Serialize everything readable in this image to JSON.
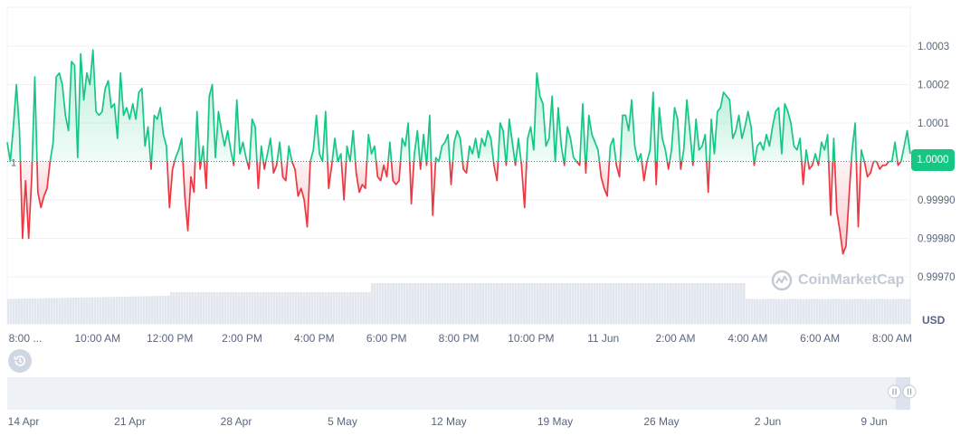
{
  "colors": {
    "up": "#16c784",
    "down": "#ea3943",
    "up_fill": "#16c784",
    "down_fill": "#ea3943",
    "grid": "#eff2f5",
    "volume": "#e2e6ee",
    "text": "#58667e",
    "badge": "#16c784"
  },
  "price_badge": "1.0000",
  "currency_label": "USD",
  "watermark": "CoinMarketCap",
  "history_icon": "history-icon",
  "chart_data": {
    "type": "line",
    "baseline": 1.0,
    "baseline_label": "1",
    "ylim": [
      0.99965,
      1.00035
    ],
    "y_ticks": [
      1.0003,
      1.0002,
      1.0001,
      0.9999,
      0.9998,
      0.9997
    ],
    "y_tick_labels": [
      "1.0003",
      "1.0002",
      "1.0001",
      "0.99990",
      "0.99980",
      "0.99970"
    ],
    "x_tick_labels": [
      "8:00 ...",
      "10:00 AM",
      "12:00 PM",
      "2:00 PM",
      "4:00 PM",
      "6:00 PM",
      "8:00 PM",
      "10:00 PM",
      "11 Jun",
      "2:00 AM",
      "4:00 AM",
      "6:00 AM",
      "8:00 AM"
    ],
    "grid": true,
    "series": [
      {
        "values": [
          1.00005,
          1.0,
          1.00009,
          1.0002,
          1.00008,
          0.9998,
          0.99995,
          0.9998,
          0.99996,
          1.00022,
          0.99992,
          0.99988,
          0.99991,
          0.99993,
          1.0,
          1.00005,
          1.00022,
          1.00023,
          1.0002,
          1.00012,
          1.00008,
          1.00026,
          1.00025,
          1.00001,
          1.00028,
          1.00016,
          1.00023,
          1.0002,
          1.00029,
          1.00013,
          1.00012,
          1.00013,
          1.00019,
          1.00021,
          1.00014,
          1.00015,
          1.00006,
          1.00023,
          1.00012,
          1.00014,
          1.00011,
          1.00015,
          1.00011,
          1.00018,
          1.00019,
          1.00004,
          1.00009,
          0.99998,
          1.00012,
          1.00011,
          1.00014,
          1.00007,
          1.00004,
          0.99988,
          0.99998,
          1.00001,
          1.00003,
          1.00006,
          0.99991,
          0.99982,
          0.99996,
          0.99992,
          1.00013,
          0.99998,
          1.00004,
          0.99993,
          1.00017,
          1.0002,
          1.00001,
          1.00013,
          1.00008,
          1.00004,
          1.00008,
          1.00003,
          0.99999,
          1.00016,
          1.00002,
          1.00005,
          1.00001,
          0.99998,
          1.00011,
          1.00009,
          0.99993,
          1.00004,
          0.99998,
          1.00002,
          1.00006,
          0.99997,
          0.99999,
          1.00005,
          0.99996,
          0.99995,
          1.00004,
          1.0,
          0.99998,
          0.99991,
          0.99993,
          0.9999,
          0.99983,
          1.0,
          1.00003,
          1.00012,
          1.00002,
          1.0,
          1.00013,
          0.99993,
          0.99999,
          1.00006,
          1.0,
          1.00002,
          0.9999,
          1.00004,
          1.0,
          1.00008,
          0.99997,
          0.99992,
          0.99994,
          0.99993,
          1.00007,
          1.00002,
          1.00004,
          0.99996,
          0.99995,
          0.99999,
          0.99996,
          1.00005,
          0.99995,
          0.99994,
          0.99995,
          1.00006,
          1.00004,
          1.0001,
          0.99989,
          1.00002,
          1.00008,
          0.99998,
          1.00007,
          0.99999,
          1.00012,
          0.99986,
          1.00001,
          1.0,
          1.00004,
          1.00005,
          1.00007,
          0.99994,
          1.00005,
          1.00008,
          1.00006,
          0.99998,
          0.99997,
          1.00004,
          1.00002,
          1.00006,
          1.00001,
          1.00006,
          1.00004,
          1.00008,
          1.00006,
          0.99999,
          0.99995,
          1.0001,
          1.00008,
          0.99999,
          1.00011,
          1.00005,
          0.99999,
          1.00006,
          0.99999,
          0.99988,
          1.00006,
          1.00009,
          1.00003,
          1.00023,
          1.00017,
          1.00015,
          1.00004,
          1.00006,
          1.00017,
          1.0,
          1.00014,
          1.00004,
          0.99999,
          1.00009,
          1.00006,
          1.00001,
          1.0,
          0.99999,
          1.00015,
          0.99997,
          1.00012,
          1.00007,
          1.00005,
          1.00003,
          0.99996,
          0.99993,
          0.99991,
          1.00004,
          1.00006,
          0.99999,
          0.99996,
          1.00012,
          1.00012,
          1.00008,
          1.00016,
          1.00004,
          1.0,
          1.00002,
          0.99995,
          1.0,
          1.00003,
          1.00018,
          0.99994,
          1.00014,
          1.00006,
          1.00003,
          0.99998,
          1.00003,
          1.00014,
          1.00011,
          0.99998,
          1.00003,
          1.00016,
          1.00008,
          0.99999,
          1.00011,
          1.00003,
          1.00004,
          1.00007,
          0.99992,
          1.00011,
          1.00002,
          1.00013,
          1.00014,
          1.00018,
          1.00017,
          1.00016,
          1.00006,
          1.00008,
          1.00012,
          1.00006,
          1.00009,
          1.00013,
          1.00009,
          0.99999,
          1.00004,
          1.00005,
          1.00003,
          1.00007,
          1.00004,
          1.00009,
          1.00013,
          1.00014,
          1.00002,
          1.00015,
          1.00013,
          1.0001,
          1.00004,
          1.00003,
          1.00006,
          0.99994,
          1.00003,
          0.99998,
          0.99999,
          1.00002,
          0.99999,
          1.00005,
          1.00003,
          1.00007,
          0.99986,
          1.00006,
          0.99987,
          0.99982,
          0.99976,
          0.99978,
          0.99991,
          1.00003,
          1.0001,
          0.99983,
          1.00003,
          1.0,
          0.99996,
          0.99997,
          1.0,
          1.0,
          0.99998,
          0.99999,
          0.99999,
          1.0,
          1.0,
          1.00005,
          0.99999,
          1.0,
          1.00004,
          1.00008,
          1.00002
        ]
      }
    ],
    "volume_levels": [
      0.55,
      0.7,
      0.9,
      0.55
    ],
    "navigator": {
      "x_tick_labels": [
        "14 Apr",
        "21 Apr",
        "28 Apr",
        "5 May",
        "12 May",
        "19 May",
        "26 May",
        "2 Jun",
        "9 Jun"
      ],
      "pause_icon": "pause-icon"
    }
  }
}
